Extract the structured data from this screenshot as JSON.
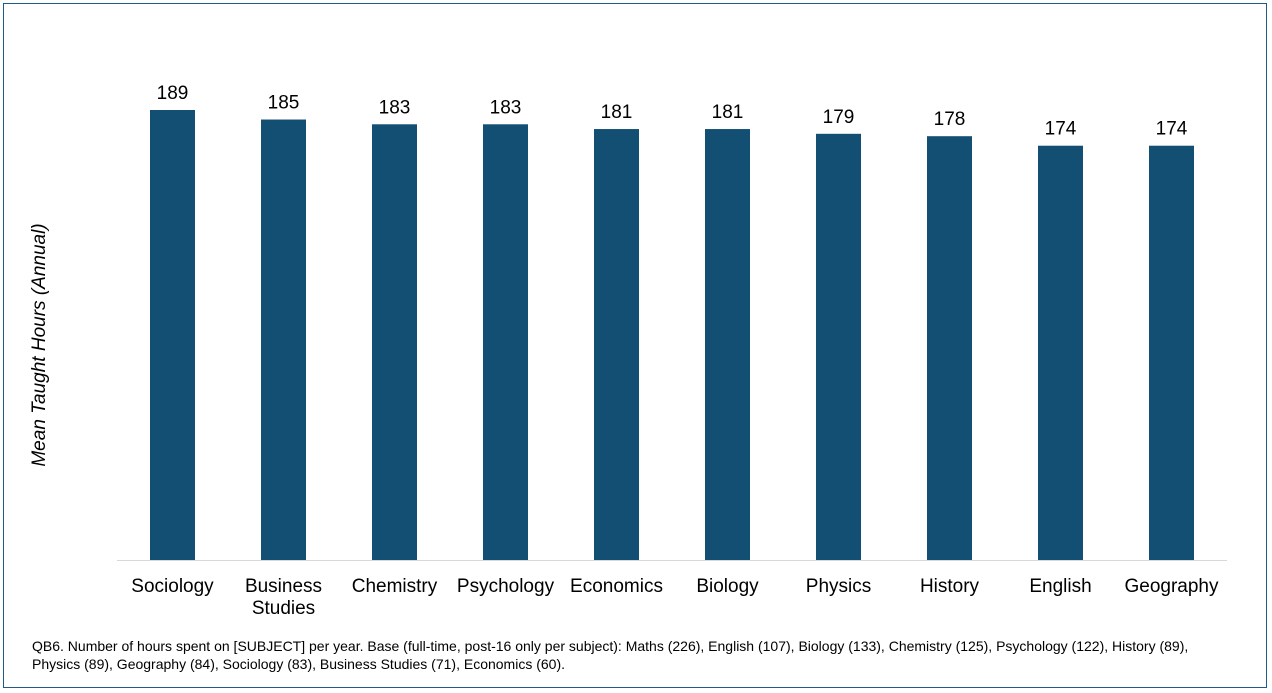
{
  "chart_data": {
    "type": "bar",
    "title": "",
    "xlabel": "",
    "ylabel": "Mean Taught Hours (Annual)",
    "categories": [
      "Sociology",
      "Business Studies",
      "Chemistry",
      "Psychology",
      "Economics",
      "Biology",
      "Physics",
      "History",
      "English",
      "Geography"
    ],
    "category_lines": [
      [
        "Sociology"
      ],
      [
        "Business",
        "Studies"
      ],
      [
        "Chemistry"
      ],
      [
        "Psychology"
      ],
      [
        "Economics"
      ],
      [
        "Biology"
      ],
      [
        "Physics"
      ],
      [
        "History"
      ],
      [
        "English"
      ],
      [
        "Geography"
      ]
    ],
    "values": [
      189,
      185,
      183,
      183,
      181,
      181,
      179,
      178,
      174,
      174
    ],
    "ylim": [
      0,
      189
    ],
    "grid": false,
    "legend": "none",
    "show_y_axis_ticks": false,
    "bar_color": "#124f73",
    "axis_color": "#d9d9d9"
  },
  "footnote": "QB6. Number of hours spent on [SUBJECT] per year. Base (full-time, post-16 only per subject): Maths (226), English (107), Biology (133), Chemistry (125), Psychology (122),  History (89), Physics (89), Geography (84), Sociology (83), Business Studies (71), Economics (60)."
}
